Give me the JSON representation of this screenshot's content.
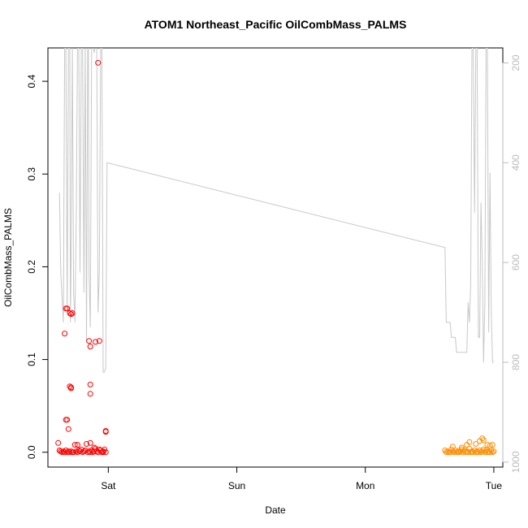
{
  "chart_data": {
    "type": "scatter",
    "title": "ATOM1 Northeast_Pacific OilCombMass_PALMS",
    "xlabel": "Date",
    "ylabel": "OilCombMass_PALMS",
    "x_unit": "days since Friday 00:00",
    "xlim": [
      0.53,
      4.07
    ],
    "ylim": [
      -0.016,
      0.436
    ],
    "x_ticks": [
      {
        "value": 1,
        "label": "Sat"
      },
      {
        "value": 2,
        "label": "Sun"
      },
      {
        "value": 3,
        "label": "Mon"
      },
      {
        "value": 4,
        "label": "Tue"
      }
    ],
    "y_ticks": [
      {
        "value": 0.0,
        "label": "0.0"
      },
      {
        "value": 0.1,
        "label": "0.1"
      },
      {
        "value": 0.2,
        "label": "0.2"
      },
      {
        "value": 0.3,
        "label": "0.3"
      },
      {
        "value": 0.4,
        "label": "0.4"
      }
    ],
    "y2_reversed": true,
    "y2lim": [
      1010,
      170
    ],
    "y2_ticks": [
      {
        "value": 200,
        "label": "200"
      },
      {
        "value": 400,
        "label": "400"
      },
      {
        "value": 600,
        "label": "600"
      },
      {
        "value": 800,
        "label": "800"
      },
      {
        "value": 1000,
        "label": "1000"
      }
    ],
    "series": [
      {
        "name": "",
        "kind": "points",
        "color": "#ff0000",
        "x": [
          0.61,
          0.62,
          0.63,
          0.64,
          0.65,
          0.66,
          0.67,
          0.68,
          0.69,
          0.7,
          0.71,
          0.72,
          0.73,
          0.74,
          0.75,
          0.76,
          0.77,
          0.78,
          0.79,
          0.8,
          0.81,
          0.82,
          0.83,
          0.84,
          0.85,
          0.86,
          0.87,
          0.88,
          0.89,
          0.9,
          0.91,
          0.92,
          0.93,
          0.94,
          0.95,
          0.96,
          0.97,
          0.98,
          0.66,
          0.67,
          0.68,
          0.67,
          0.68,
          0.7,
          0.72,
          0.7,
          0.71,
          0.71,
          0.71,
          0.69,
          0.76,
          0.86,
          0.89,
          0.86,
          0.86,
          0.86,
          0.93,
          0.9,
          0.92,
          0.85,
          0.98,
          0.98,
          0.96
        ],
        "y": [
          0.01,
          0.002,
          0.001,
          0.0,
          0.001,
          0.0,
          0.002,
          0.0,
          0.001,
          0.0,
          0.001,
          0.0,
          0.0,
          0.008,
          0.001,
          0.0,
          0.002,
          0.001,
          0.003,
          0.0,
          0.001,
          0.002,
          0.009,
          0.0,
          0.001,
          0.0,
          0.002,
          0.0,
          0.001,
          0.004,
          0.001,
          0.0,
          0.003,
          0.002,
          0.0,
          0.001,
          0.003,
          0.0,
          0.128,
          0.155,
          0.155,
          0.035,
          0.035,
          0.15,
          0.15,
          0.071,
          0.069,
          0.07,
          0.149,
          0.025,
          0.008,
          0.01,
          0.005,
          0.073,
          0.063,
          0.114,
          0.12,
          0.119,
          0.42,
          0.12,
          0.023,
          0.022,
          0.0
        ]
      },
      {
        "name": "",
        "kind": "points",
        "color": "#ff8c00",
        "x": [
          3.62,
          3.63,
          3.64,
          3.65,
          3.66,
          3.67,
          3.68,
          3.69,
          3.7,
          3.71,
          3.72,
          3.73,
          3.74,
          3.75,
          3.76,
          3.77,
          3.78,
          3.79,
          3.8,
          3.81,
          3.82,
          3.83,
          3.84,
          3.85,
          3.86,
          3.87,
          3.88,
          3.89,
          3.9,
          3.91,
          3.92,
          3.93,
          3.94,
          3.95,
          3.96,
          3.97,
          3.98,
          3.99,
          4.0,
          3.68,
          3.75,
          3.79,
          3.81,
          3.86,
          3.89,
          3.91,
          3.92,
          3.95,
          3.97,
          3.99
        ],
        "y": [
          0.002,
          0.0,
          0.001,
          0.0,
          0.0,
          0.003,
          0.001,
          0.0,
          0.002,
          0.0,
          0.001,
          0.0,
          0.001,
          0.003,
          0.0,
          0.002,
          0.0,
          0.001,
          0.0,
          0.004,
          0.0,
          0.001,
          0.0,
          0.002,
          0.0,
          0.001,
          0.0,
          0.002,
          0.0,
          0.001,
          0.003,
          0.0,
          0.002,
          0.0,
          0.001,
          0.0,
          0.002,
          0.0,
          0.001,
          0.006,
          0.005,
          0.008,
          0.011,
          0.009,
          0.012,
          0.015,
          0.013,
          0.008,
          0.007,
          0.008
        ]
      },
      {
        "name": "",
        "kind": "line",
        "color": "#c8c8c8",
        "axis": "right",
        "x": [
          0.62,
          0.63,
          0.65,
          0.66,
          0.67,
          0.68,
          0.69,
          0.7,
          0.705,
          0.71,
          0.72,
          0.73,
          0.74,
          0.75,
          0.76,
          0.77,
          0.78,
          0.79,
          0.8,
          0.81,
          0.82,
          0.83,
          0.84,
          0.845,
          0.85,
          0.86,
          0.87,
          0.88,
          0.89,
          0.9,
          0.91,
          0.92,
          0.93,
          0.94,
          0.95,
          0.96,
          0.97,
          0.98,
          0.99,
          3.62,
          3.63,
          3.66,
          3.67,
          3.7,
          3.71,
          3.75,
          3.79,
          3.8,
          3.81,
          3.82,
          3.83,
          3.84,
          3.85,
          3.86,
          3.87,
          3.88,
          3.89,
          3.9,
          3.91,
          3.92,
          3.93,
          3.94,
          3.95,
          3.96,
          3.97,
          3.98,
          3.99,
          4.0
        ],
        "y": [
          460,
          620,
          720,
          170,
          170,
          700,
          170,
          170,
          720,
          600,
          170,
          660,
          720,
          520,
          170,
          170,
          620,
          170,
          170,
          660,
          170,
          760,
          170,
          170,
          620,
          730,
          170,
          160,
          180,
          160,
          170,
          700,
          620,
          170,
          170,
          820,
          820,
          810,
          400,
          570,
          720,
          720,
          750,
          750,
          780,
          780,
          780,
          680,
          720,
          640,
          170,
          170,
          500,
          170,
          170,
          750,
          750,
          480,
          600,
          800,
          680,
          170,
          170,
          740,
          420,
          700,
          800,
          800
        ]
      }
    ]
  }
}
